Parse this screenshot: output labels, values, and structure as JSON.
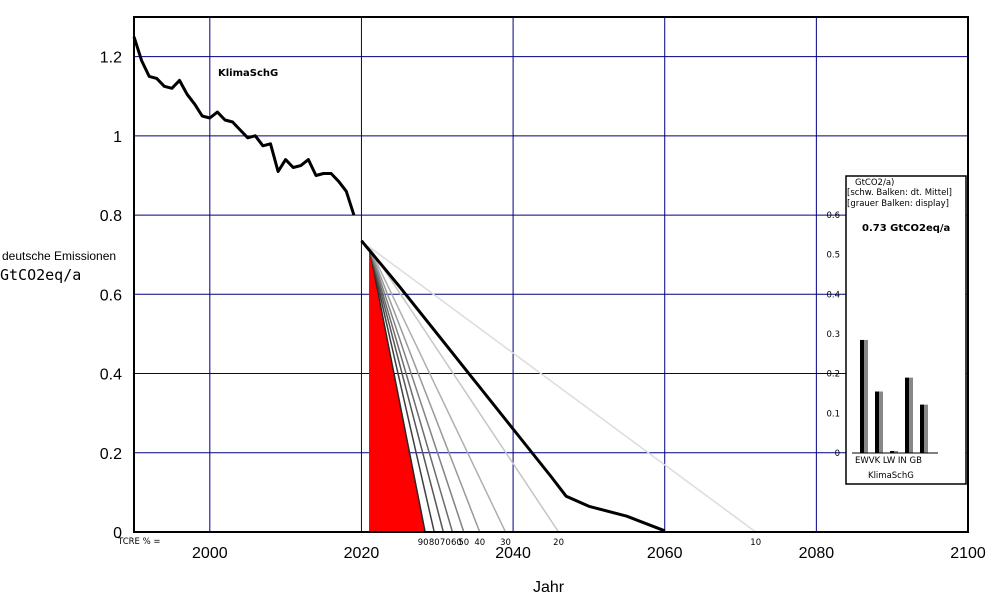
{
  "chart_data": {
    "type": "line",
    "title": "",
    "annotation": "KlimaSchG",
    "xlabel": "Jahr",
    "ylabel_line1": "deutsche Emissionen",
    "ylabel_line2": "GtCO2eq/a",
    "xlim": [
      1990,
      2100
    ],
    "ylim": [
      0,
      1.3
    ],
    "x_ticks": [
      2000,
      2020,
      2040,
      2060,
      2080,
      2100
    ],
    "y_ticks": [
      0,
      0.2,
      0.4,
      0.6,
      0.8,
      1,
      1.2
    ],
    "y_tick_labels": [
      "0",
      "0.2",
      "0.4",
      "0.6",
      "0.8",
      "1",
      "1.2"
    ],
    "grid": true,
    "colors": {
      "history": "#000000",
      "grid": "#000080",
      "red": "#ff0000"
    },
    "series": [
      {
        "role": "historical",
        "x": [
          1990,
          1991,
          1992,
          1993,
          1994,
          1995,
          1996,
          1997,
          1998,
          1999,
          2000,
          2001,
          2002,
          2003,
          2004,
          2005,
          2006,
          2007,
          2008,
          2009,
          2010,
          2011,
          2012,
          2013,
          2014,
          2015,
          2016,
          2017,
          2018,
          2019
        ],
        "y": [
          1.25,
          1.19,
          1.15,
          1.145,
          1.125,
          1.12,
          1.14,
          1.105,
          1.08,
          1.05,
          1.045,
          1.06,
          1.04,
          1.035,
          1.015,
          0.995,
          1.0,
          0.975,
          0.98,
          0.91,
          0.94,
          0.92,
          0.925,
          0.94,
          0.9,
          0.905,
          0.905,
          0.885,
          0.86,
          0.8
        ]
      },
      {
        "role": "klimaschg-path",
        "x": [
          2020,
          2025,
          2030,
          2035,
          2040,
          2045,
          2047,
          2050,
          2055,
          2060
        ],
        "y": [
          0.735,
          0.62,
          0.5,
          0.38,
          0.26,
          0.14,
          0.09,
          0.065,
          0.04,
          0.003
        ]
      }
    ],
    "tcre_label": "TCRE % =",
    "tcre_lines": [
      {
        "label": "90",
        "x_end": 2028.4
      },
      {
        "label": "80",
        "x_end": 2029.6
      },
      {
        "label": "70",
        "x_end": 2030.8
      },
      {
        "label": "60",
        "x_end": 2032.0
      },
      {
        "label": "50",
        "x_end": 2033.5
      },
      {
        "label": "40",
        "x_end": 2035.6
      },
      {
        "label": "30",
        "x_end": 2039.0
      },
      {
        "label": "20",
        "x_end": 2046.0
      },
      {
        "label": "10",
        "x_end": 2072.0
      }
    ],
    "tcre_start": {
      "x": 2021,
      "y": 0.72
    },
    "red_area": {
      "x": [
        2021,
        2021,
        2028.4
      ],
      "y": [
        0,
        0.72,
        0
      ]
    },
    "inset": {
      "header_line1": "GtCO2/a)",
      "header_line2": "[schw. Balken: dt. Mittel]",
      "header_line3": "[grauer Balken: display]",
      "value_label": "0.73 GtCO2eq/a",
      "ylim": [
        0,
        0.6
      ],
      "y_ticks": [
        "0",
        "0.1",
        "0.2",
        "0.3",
        "0.4",
        "0.5",
        "0.6"
      ],
      "categories": [
        "EW",
        "VK",
        "LW",
        "IN",
        "GB"
      ],
      "category_row": "EWVK LW IN GB",
      "black_values": [
        0.285,
        0.155,
        0.005,
        0.19,
        0.122
      ],
      "grey_values": [
        0.285,
        0.155,
        0.005,
        0.19,
        0.122
      ],
      "footer": "KlimaSchG"
    }
  }
}
